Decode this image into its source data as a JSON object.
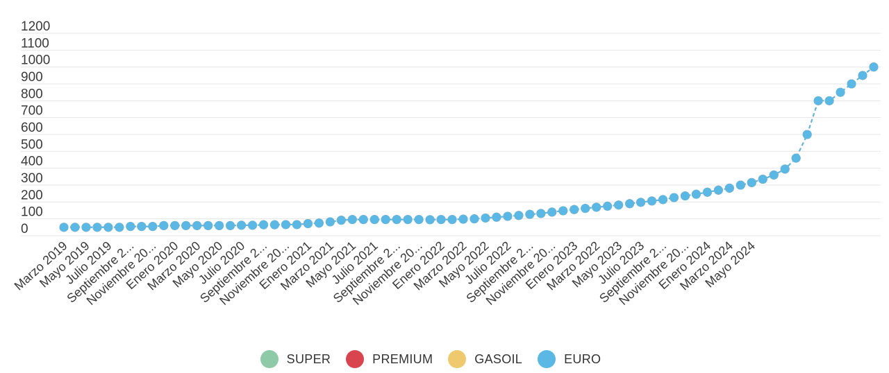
{
  "chart_data": {
    "type": "line",
    "title": "",
    "xlabel": "",
    "ylabel": "",
    "ylim": [
      0,
      1200
    ],
    "y_ticks": [
      "0",
      "100",
      "200",
      "300",
      "400",
      "500",
      "600",
      "700",
      "800",
      "900",
      "1000",
      "1100",
      "1200"
    ],
    "grid": "horizontal",
    "legend_position": "bottom-center",
    "x_tick_labels": [
      "Marzo 2019",
      "Mayo 2019",
      "Julio 2019",
      "Septiembre 2...",
      "Noviembre 20...",
      "Enero 2020",
      "Marzo 2020",
      "Mayo 2020",
      "Julio 2020",
      "Septiembre 2...",
      "Noviembre 20...",
      "Enero 2021",
      "Marzo 2021",
      "Mayo 2021",
      "Julio 2021",
      "Septiembre 2...",
      "Noviembre 20...",
      "Enero 2022",
      "Marzo 2022",
      "Mayo 2022",
      "Julio 2022",
      "Septiembre 2...",
      "Noviembre 20...",
      "Enero 2023",
      "Marzo 2022",
      "Mayo 2023",
      "Julio 2023",
      "Septiembre 2...",
      "Noviembre 20...",
      "Enero 2024",
      "Marzo 2024",
      "Mayo 2024"
    ],
    "points_per_tick": 2,
    "series": [
      {
        "name": "SUPER",
        "color": "#8ec9a8",
        "values": [
          50,
          50,
          50,
          50,
          50,
          50,
          55,
          55,
          55,
          60,
          60,
          60,
          60,
          60,
          60,
          60,
          62,
          62,
          65,
          65,
          66,
          66,
          72,
          75,
          82,
          92,
          96,
          96,
          96,
          96,
          96,
          96,
          96,
          95,
          96,
          96,
          98,
          100,
          105,
          110,
          115,
          120,
          127,
          132,
          140,
          148,
          155,
          162,
          169,
          175,
          182,
          190,
          198,
          206,
          214,
          226,
          236,
          246,
          258,
          270,
          282,
          300,
          315,
          335,
          360,
          395,
          460,
          600,
          800,
          800,
          850,
          900,
          950,
          1000
        ]
      },
      {
        "name": "PREMIUM",
        "color": "#d9454f",
        "values": [
          50,
          50,
          50,
          50,
          50,
          50,
          55,
          55,
          55,
          60,
          60,
          60,
          60,
          60,
          60,
          60,
          62,
          62,
          65,
          65,
          66,
          66,
          72,
          75,
          82,
          92,
          96,
          96,
          96,
          96,
          96,
          96,
          96,
          95,
          96,
          96,
          98,
          100,
          105,
          110,
          115,
          120,
          127,
          132,
          140,
          148,
          155,
          162,
          169,
          175,
          182,
          190,
          198,
          206,
          214,
          226,
          236,
          246,
          258,
          270,
          282,
          300,
          315,
          335,
          360,
          395,
          460,
          600,
          800,
          800,
          850,
          900,
          950,
          1000
        ]
      },
      {
        "name": "GASOIL",
        "color": "#eec96e",
        "values": [
          50,
          50,
          50,
          50,
          50,
          50,
          55,
          55,
          55,
          60,
          60,
          60,
          60,
          60,
          60,
          60,
          62,
          62,
          65,
          65,
          66,
          66,
          72,
          75,
          82,
          92,
          96,
          96,
          96,
          96,
          96,
          96,
          96,
          95,
          96,
          96,
          98,
          100,
          105,
          110,
          115,
          120,
          127,
          132,
          140,
          148,
          155,
          162,
          169,
          175,
          182,
          190,
          198,
          206,
          214,
          226,
          236,
          246,
          258,
          270,
          282,
          300,
          315,
          335,
          360,
          395,
          460,
          600,
          800,
          800,
          850,
          900,
          950,
          1000
        ]
      },
      {
        "name": "EURO",
        "color": "#5bb8e5",
        "values": [
          50,
          50,
          50,
          50,
          50,
          50,
          55,
          55,
          55,
          60,
          60,
          60,
          60,
          60,
          60,
          60,
          62,
          62,
          65,
          65,
          66,
          66,
          72,
          75,
          82,
          92,
          96,
          96,
          96,
          96,
          96,
          96,
          96,
          95,
          96,
          96,
          98,
          100,
          105,
          110,
          115,
          120,
          127,
          132,
          140,
          148,
          155,
          162,
          169,
          175,
          182,
          190,
          198,
          206,
          214,
          226,
          236,
          246,
          258,
          270,
          282,
          300,
          315,
          335,
          360,
          395,
          460,
          600,
          800,
          800,
          850,
          900,
          950,
          1000
        ]
      }
    ]
  }
}
